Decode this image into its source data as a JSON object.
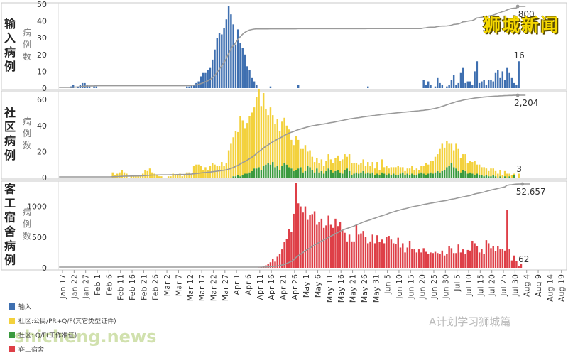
{
  "overlay": {
    "title": "狮城新闻",
    "watermark_account": "A计划学习狮城篇",
    "watermark_site": "shicheng.news"
  },
  "legend": [
    {
      "label": "输入",
      "color": "#3e6fb0"
    },
    {
      "label": "社区:公民/PR+Q/F(其它类型证件)",
      "color": "#f3d13c"
    },
    {
      "label": "社区: Q/F(工作准证)",
      "color": "#3a9a3e"
    },
    {
      "label": "客工宿舍",
      "color": "#de3f47"
    }
  ],
  "x_ticks": [
    "Jan 17",
    "Jan 22",
    "Jan 27",
    "Feb 1",
    "Feb 6",
    "Feb 11",
    "Feb 16",
    "Feb 21",
    "Feb 26",
    "Mar 2",
    "Mar 7",
    "Mar 12",
    "Mar 17",
    "Mar 22",
    "Mar 27",
    "Apr 1",
    "Apr 6",
    "Apr 11",
    "Apr 16",
    "Apr 21",
    "Apr 26",
    "May 1",
    "May 6",
    "May 11",
    "May 16",
    "May 21",
    "May 26",
    "May 31",
    "Jun 5",
    "Jun 10",
    "Jun 15",
    "Jun 20",
    "Jun 25",
    "Jun 30",
    "Jul 5",
    "Jul 10",
    "Jul 15",
    "Jul 20",
    "Jul 25",
    "Jul 30",
    "Aug 4",
    "Aug 9",
    "Aug 14",
    "Aug 19"
  ],
  "chart_data": [
    {
      "type": "bar",
      "title": "输入病例",
      "ylabel": "病例数",
      "ylim": [
        0,
        50
      ],
      "yticks": [
        0,
        10,
        20,
        30,
        40,
        50
      ],
      "series": [
        {
          "name": "输入",
          "color": "#3e6fb0"
        }
      ],
      "x_start": "Jan 17",
      "values": [
        0,
        0,
        0,
        0,
        0,
        1,
        2,
        0,
        1,
        2,
        3,
        3,
        2,
        1,
        0,
        1,
        1,
        0,
        0,
        0,
        0,
        0,
        0,
        0,
        0,
        0,
        0,
        0,
        0,
        0,
        0,
        0,
        0,
        0,
        0,
        0,
        0,
        0,
        0,
        0,
        0,
        0,
        0,
        0,
        0,
        0,
        0,
        0,
        0,
        0,
        0,
        0,
        0,
        0,
        0,
        1,
        1,
        2,
        2,
        3,
        4,
        7,
        9,
        9,
        11,
        12,
        17,
        23,
        30,
        33,
        32,
        36,
        41,
        49,
        44,
        38,
        26,
        35,
        27,
        24,
        20,
        13,
        11,
        6,
        4,
        2,
        0,
        0,
        0,
        0,
        0,
        1,
        0,
        0,
        0,
        0,
        0,
        0,
        0,
        0,
        0,
        0,
        0,
        2,
        0,
        0,
        0,
        0,
        0,
        0,
        0,
        0,
        0,
        0,
        0,
        0,
        0,
        0,
        0,
        0,
        0,
        0,
        0,
        0,
        0,
        0,
        0,
        0,
        0,
        0,
        0,
        0,
        0,
        1,
        0,
        0,
        0,
        0,
        0,
        0,
        0,
        0,
        0,
        0,
        0,
        0,
        0,
        0,
        0,
        0,
        0,
        0,
        0,
        0,
        0,
        0,
        0,
        5,
        2,
        4,
        2,
        0,
        1,
        6,
        3,
        2,
        0,
        1,
        2,
        5,
        8,
        2,
        3,
        9,
        12,
        3,
        4,
        4,
        2,
        10,
        16,
        3,
        4,
        5,
        2,
        5,
        5,
        4,
        9,
        11,
        6,
        10,
        5,
        12,
        9,
        6,
        3,
        2,
        16,
        0,
        0,
        0
      ],
      "cumulative_label": "800",
      "last_label": "16"
    },
    {
      "type": "bar",
      "title": "社区病例",
      "ylabel": "病例数",
      "ylim": [
        0,
        65
      ],
      "yticks": [
        0,
        20,
        40,
        60
      ],
      "series": [
        {
          "name": "社区:公民/PR+Q/F(其它类型证件)",
          "color": "#f3d13c"
        },
        {
          "name": "社区: Q/F(工作准证)",
          "color": "#3a9a3e"
        }
      ],
      "x_start": "Jan 17",
      "yellow": [
        0,
        0,
        0,
        0,
        0,
        0,
        0,
        0,
        0,
        0,
        0,
        0,
        0,
        0,
        0,
        0,
        0,
        0,
        0,
        0,
        0,
        0,
        0,
        4,
        2,
        3,
        4,
        6,
        4,
        3,
        0,
        2,
        1,
        1,
        1,
        2,
        3,
        6,
        5,
        7,
        4,
        3,
        2,
        1,
        1,
        0,
        0,
        1,
        1,
        3,
        2,
        2,
        3,
        1,
        2,
        4,
        4,
        3,
        9,
        10,
        10,
        9,
        6,
        8,
        6,
        9,
        11,
        10,
        9,
        9,
        12,
        9,
        11,
        21,
        26,
        30,
        35,
        33,
        46,
        42,
        35,
        39,
        43,
        45,
        47,
        55,
        60,
        49,
        56,
        43,
        37,
        44,
        36,
        33,
        36,
        30,
        34,
        35,
        30,
        29,
        22,
        20,
        26,
        22,
        14,
        18,
        20,
        11,
        13,
        10,
        8,
        8,
        7,
        9,
        6,
        8,
        11,
        8,
        7,
        10,
        11,
        9,
        11,
        12,
        9,
        13,
        9,
        8,
        7,
        7,
        7,
        9,
        6,
        8,
        6,
        8,
        5,
        9,
        4,
        10,
        5,
        7,
        4,
        6,
        5,
        6,
        7,
        5,
        4,
        3,
        4,
        5,
        6,
        4,
        5,
        3,
        5,
        6,
        9,
        7,
        9,
        10,
        12,
        13,
        18,
        21,
        17,
        20,
        17,
        15,
        13,
        19,
        17,
        11,
        12,
        13,
        8,
        9,
        9,
        11,
        7,
        8,
        6,
        7,
        5,
        4,
        6,
        5,
        4,
        3,
        5,
        2,
        4,
        3,
        2,
        2,
        1,
        0,
        3,
        0,
        0,
        0
      ],
      "green": [
        0,
        0,
        0,
        0,
        0,
        0,
        0,
        0,
        0,
        0,
        0,
        0,
        0,
        0,
        0,
        0,
        0,
        0,
        0,
        0,
        0,
        0,
        0,
        0,
        0,
        0,
        0,
        0,
        0,
        0,
        0,
        0,
        0,
        0,
        0,
        0,
        0,
        0,
        0,
        0,
        0,
        0,
        0,
        0,
        0,
        0,
        0,
        0,
        0,
        0,
        0,
        0,
        0,
        0,
        0,
        0,
        0,
        0,
        0,
        0,
        0,
        0,
        0,
        0,
        0,
        0,
        0,
        0,
        0,
        0,
        0,
        0,
        0,
        0,
        0,
        1,
        1,
        2,
        1,
        2,
        3,
        3,
        4,
        5,
        7,
        7,
        8,
        6,
        9,
        10,
        11,
        10,
        12,
        8,
        9,
        6,
        9,
        11,
        10,
        8,
        7,
        5,
        6,
        7,
        8,
        4,
        5,
        9,
        8,
        6,
        4,
        7,
        4,
        5,
        3,
        5,
        7,
        6,
        4,
        5,
        6,
        4,
        3,
        6,
        7,
        5,
        2,
        3,
        4,
        3,
        4,
        5,
        3,
        4,
        3,
        4,
        2,
        3,
        2,
        4,
        3,
        2,
        3,
        2,
        3,
        2,
        2,
        3,
        4,
        2,
        3,
        2,
        3,
        2,
        2,
        3,
        4,
        3,
        2,
        3,
        4,
        3,
        4,
        5,
        4,
        5,
        6,
        8,
        9,
        11,
        8,
        7,
        5,
        4,
        6,
        5,
        3,
        4,
        3,
        2,
        3,
        2,
        2,
        1,
        2,
        1,
        1,
        2,
        1,
        0,
        1,
        0,
        1,
        0,
        1,
        0,
        2,
        0,
        0,
        0
      ],
      "cumulative_label": "2,204",
      "last_label": "3"
    },
    {
      "type": "bar",
      "title": "客工宿舍病例",
      "ylabel": "病例数",
      "ylim": [
        0,
        1400
      ],
      "yticks": [
        0,
        500,
        1000
      ],
      "series": [
        {
          "name": "客工宿舍",
          "color": "#de3f47"
        }
      ],
      "x_start": "Jan 17",
      "values": [
        0,
        0,
        0,
        0,
        0,
        0,
        0,
        0,
        0,
        0,
        0,
        0,
        0,
        0,
        0,
        0,
        0,
        0,
        0,
        0,
        0,
        0,
        0,
        0,
        0,
        0,
        0,
        0,
        0,
        0,
        0,
        0,
        0,
        0,
        0,
        0,
        0,
        0,
        0,
        0,
        0,
        0,
        0,
        0,
        0,
        0,
        0,
        0,
        0,
        0,
        0,
        0,
        0,
        0,
        0,
        0,
        0,
        0,
        0,
        0,
        0,
        0,
        0,
        0,
        0,
        0,
        0,
        0,
        0,
        0,
        0,
        0,
        0,
        0,
        0,
        0,
        0,
        0,
        0,
        0,
        0,
        0,
        0,
        0,
        0,
        0,
        2,
        10,
        28,
        40,
        62,
        90,
        140,
        100,
        180,
        230,
        300,
        420,
        468,
        625,
        590,
        880,
        1380,
        1050,
        1000,
        900,
        1000,
        780,
        860,
        875,
        920,
        700,
        750,
        800,
        650,
        690,
        850,
        700,
        650,
        800,
        680,
        750,
        620,
        570,
        430,
        540,
        430,
        430,
        700,
        540,
        560,
        600,
        500,
        400,
        430,
        540,
        400,
        530,
        420,
        460,
        400,
        500,
        520,
        460,
        400,
        390,
        490,
        330,
        400,
        250,
        330,
        440,
        310,
        300,
        250,
        300,
        250,
        320,
        260,
        220,
        250,
        240,
        260,
        240,
        220,
        280,
        200,
        220,
        350,
        320,
        240,
        240,
        380,
        250,
        300,
        220,
        290,
        280,
        440,
        400,
        350,
        250,
        310,
        230,
        450,
        400,
        320,
        350,
        270,
        350,
        300,
        310,
        280,
        940,
        300,
        120,
        200,
        110,
        30,
        62,
        0,
        0,
        0,
        0
      ],
      "cumulative_label": "52,657",
      "last_label": "62"
    }
  ]
}
